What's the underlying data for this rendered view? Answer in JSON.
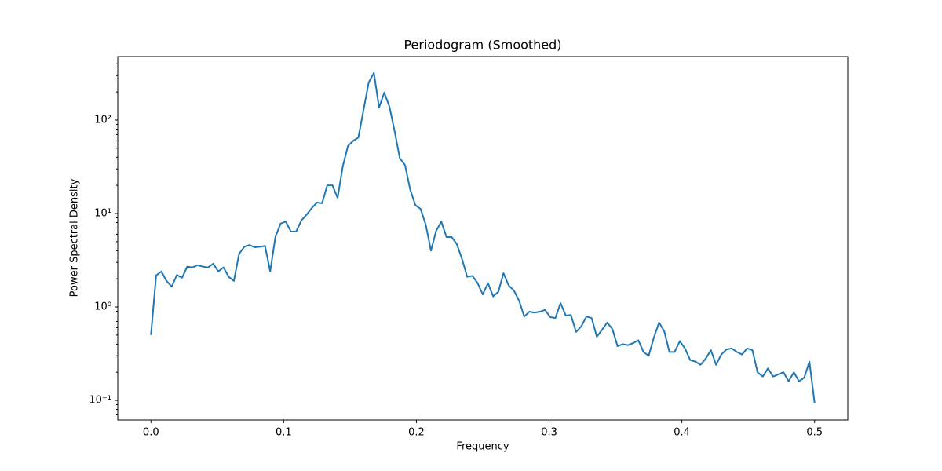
{
  "chart_data": {
    "type": "line",
    "title": "Periodogram (Smoothed)",
    "x_label": "Frequency",
    "y_label": "Power Spectral Density",
    "yscale": "log",
    "grid": false,
    "xlim": [
      -0.025,
      0.525
    ],
    "xticks": [
      {
        "value": 0,
        "label": "0.0"
      },
      0.1,
      0.2,
      0.3,
      0.4,
      0.5
    ],
    "ylim": [
      0.0617,
      479
    ],
    "yticks": [
      {
        "value": 0.1,
        "label": "10⁻¹"
      },
      {
        "value": 1,
        "label": "10⁰"
      },
      {
        "value": 10,
        "label": "10¹"
      },
      {
        "value": 100,
        "label": "10²"
      }
    ],
    "yminorticks": [
      0.07,
      0.08,
      0.09,
      0.2,
      0.3,
      0.4,
      0.5,
      0.6,
      0.7,
      0.8,
      0.9,
      2,
      3,
      4,
      5,
      6,
      7,
      8,
      9,
      20,
      30,
      40,
      50,
      60,
      70,
      80,
      90,
      200,
      300,
      400
    ],
    "x": [
      0,
      0.00390625,
      0.0078125,
      0.01171875,
      0.015625,
      0.01953125,
      0.0234375,
      0.02734375,
      0.03125,
      0.03515625,
      0.0390625,
      0.04296875,
      0.046875,
      0.05078125,
      0.0546875,
      0.05859375,
      0.0625,
      0.06640625,
      0.0703125,
      0.07421875,
      0.078125,
      0.08203125,
      0.0859375,
      0.08984375,
      0.09375,
      0.09765625,
      0.1015625,
      0.10546875,
      0.109375,
      0.11328125,
      0.1171875,
      0.12109375,
      0.125,
      0.12890625,
      0.1328125,
      0.13671875,
      0.140625,
      0.14453125,
      0.1484375,
      0.15234375,
      0.15625,
      0.16015625,
      0.1640625,
      0.16796875,
      0.171875,
      0.17578125,
      0.1796875,
      0.18359375,
      0.1875,
      0.19140625,
      0.1953125,
      0.19921875,
      0.203125,
      0.20703125,
      0.2109375,
      0.21484375,
      0.21875,
      0.22265625,
      0.2265625,
      0.23046875,
      0.234375,
      0.23828125,
      0.2421875,
      0.24609375,
      0.25,
      0.25390625,
      0.2578125,
      0.26171875,
      0.265625,
      0.26953125,
      0.2734375,
      0.27734375,
      0.28125,
      0.28515625,
      0.2890625,
      0.29296875,
      0.296875,
      0.30078125,
      0.3046875,
      0.30859375,
      0.3125,
      0.31640625,
      0.3203125,
      0.32421875,
      0.328125,
      0.33203125,
      0.3359375,
      0.33984375,
      0.34375,
      0.34765625,
      0.3515625,
      0.35546875,
      0.359375,
      0.36328125,
      0.3671875,
      0.37109375,
      0.375,
      0.37890625,
      0.3828125,
      0.38671875,
      0.390625,
      0.39453125,
      0.3984375,
      0.40234375,
      0.40625,
      0.41015625,
      0.4140625,
      0.41796875,
      0.421875,
      0.42578125,
      0.4296875,
      0.43359375,
      0.4375,
      0.44140625,
      0.4453125,
      0.44921875,
      0.453125,
      0.45703125,
      0.4609375,
      0.46484375,
      0.46875,
      0.47265625,
      0.4765625,
      0.48046875,
      0.484375,
      0.48828125,
      0.4921875,
      0.49609375,
      0.5
    ],
    "series": [
      {
        "color": "#1f77b4",
        "values": [
          0.5,
          2.17,
          2.4,
          1.9,
          1.65,
          2.2,
          2.05,
          2.7,
          2.65,
          2.8,
          2.7,
          2.65,
          2.9,
          2.4,
          2.65,
          2.1,
          1.9,
          3.7,
          4.4,
          4.6,
          4.35,
          4.4,
          4.5,
          2.4,
          5.6,
          7.8,
          8.2,
          6.4,
          6.4,
          8.4,
          9.7,
          11.4,
          13.1,
          12.9,
          20,
          20,
          14.7,
          32,
          53,
          60,
          65,
          128,
          253,
          320,
          136,
          197,
          139,
          76,
          39,
          33,
          18,
          12.3,
          11.2,
          7.6,
          4.0,
          6.5,
          8.2,
          5.6,
          5.6,
          4.7,
          3.25,
          2.1,
          2.15,
          1.8,
          1.36,
          1.8,
          1.3,
          1.45,
          2.3,
          1.7,
          1.5,
          1.17,
          0.79,
          0.89,
          0.87,
          0.89,
          0.93,
          0.78,
          0.76,
          1.1,
          0.81,
          0.82,
          0.54,
          0.62,
          0.79,
          0.76,
          0.48,
          0.57,
          0.68,
          0.58,
          0.38,
          0.4,
          0.39,
          0.41,
          0.44,
          0.33,
          0.3,
          0.47,
          0.68,
          0.55,
          0.33,
          0.33,
          0.43,
          0.36,
          0.27,
          0.26,
          0.24,
          0.28,
          0.345,
          0.24,
          0.31,
          0.35,
          0.36,
          0.33,
          0.31,
          0.36,
          0.345,
          0.2,
          0.18,
          0.22,
          0.18,
          0.19,
          0.2,
          0.16,
          0.2,
          0.16,
          0.175,
          0.26,
          0.094
        ]
      }
    ]
  }
}
